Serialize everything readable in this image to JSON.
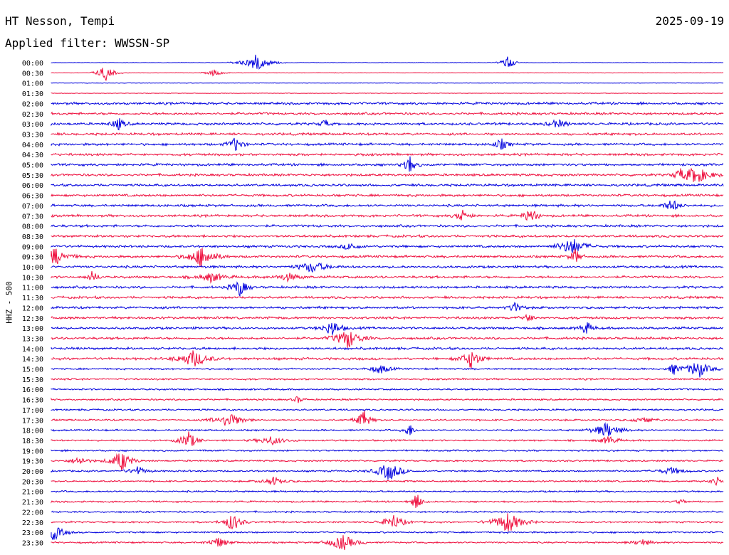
{
  "header": {
    "station": "HT Nesson, Tempi",
    "filter": "Applied filter: WWSSN-SP",
    "date": "2025-09-19"
  },
  "chart_data": {
    "type": "line",
    "title": "HT Nesson, Tempi",
    "subtitle": "Applied filter: WWSSN-SP",
    "ylabel": "HHZ - 500",
    "date": "2025-09-19",
    "row_labels": [
      "00:00",
      "00:30",
      "01:00",
      "01:30",
      "02:00",
      "02:30",
      "03:00",
      "03:30",
      "04:00",
      "04:30",
      "05:00",
      "05:30",
      "06:00",
      "06:30",
      "07:00",
      "07:30",
      "08:00",
      "08:30",
      "09:00",
      "09:30",
      "10:00",
      "10:30",
      "11:00",
      "11:30",
      "12:00",
      "12:30",
      "13:00",
      "13:30",
      "14:00",
      "14:30",
      "15:00",
      "15:30",
      "16:00",
      "16:30",
      "17:00",
      "17:30",
      "18:00",
      "18:30",
      "19:00",
      "19:30",
      "20:00",
      "20:30",
      "21:00",
      "21:30",
      "22:00",
      "22:30",
      "23:00",
      "23:30"
    ],
    "colors": {
      "even": "#0000dd",
      "odd": "#ee0f3e"
    },
    "legend": "none",
    "grid": false
  }
}
